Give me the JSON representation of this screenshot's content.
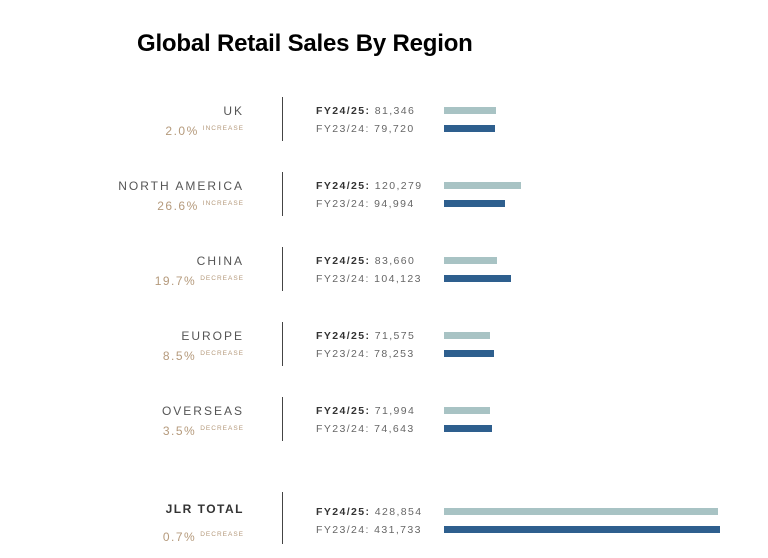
{
  "title": "Global Retail Sales By Region",
  "colors": {
    "current": "#a8c3c4",
    "previous": "#2e5f8e",
    "change": "#b59a7c"
  },
  "labels": {
    "current_prefix": "FY24/25:",
    "previous_prefix": "FY23/24:"
  },
  "rows": [
    {
      "region": "UK",
      "pct": "2.0%",
      "direction": "INCREASE",
      "current": "81,346",
      "previous": "79,720"
    },
    {
      "region": "NORTH AMERICA",
      "pct": "26.6%",
      "direction": "INCREASE",
      "current": "120,279",
      "previous": "94,994"
    },
    {
      "region": "CHINA",
      "pct": "19.7%",
      "direction": "DECREASE",
      "current": "83,660",
      "previous": "104,123"
    },
    {
      "region": "EUROPE",
      "pct": "8.5%",
      "direction": "DECREASE",
      "current": "71,575",
      "previous": "78,253"
    },
    {
      "region": "OVERSEAS",
      "pct": "3.5%",
      "direction": "DECREASE",
      "current": "71,994",
      "previous": "74,643"
    },
    {
      "region": "JLR TOTAL",
      "pct": "0.7%",
      "direction": "DECREASE",
      "current": "428,854",
      "previous": "431,733"
    }
  ],
  "chart_data": {
    "type": "bar",
    "orientation": "horizontal",
    "title": "Global Retail Sales By Region",
    "categories": [
      "UK",
      "North America",
      "China",
      "Europe",
      "Overseas",
      "JLR Total"
    ],
    "series": [
      {
        "name": "FY24/25",
        "color": "#a8c3c4",
        "values": [
          81346,
          120279,
          83660,
          71575,
          71994,
          428854
        ]
      },
      {
        "name": "FY23/24",
        "color": "#2e5f8e",
        "values": [
          79720,
          94994,
          104123,
          78253,
          74643,
          431733
        ]
      }
    ],
    "annotations": [
      {
        "category": "UK",
        "change": "2.0%",
        "direction": "INCREASE"
      },
      {
        "category": "North America",
        "change": "26.6%",
        "direction": "INCREASE"
      },
      {
        "category": "China",
        "change": "19.7%",
        "direction": "DECREASE"
      },
      {
        "category": "Europe",
        "change": "8.5%",
        "direction": "DECREASE"
      },
      {
        "category": "Overseas",
        "change": "3.5%",
        "direction": "DECREASE"
      },
      {
        "category": "JLR Total",
        "change": "0.7%",
        "direction": "DECREASE"
      }
    ],
    "xlabel": "",
    "ylabel": "",
    "grid": false,
    "legend": "inline labels"
  }
}
